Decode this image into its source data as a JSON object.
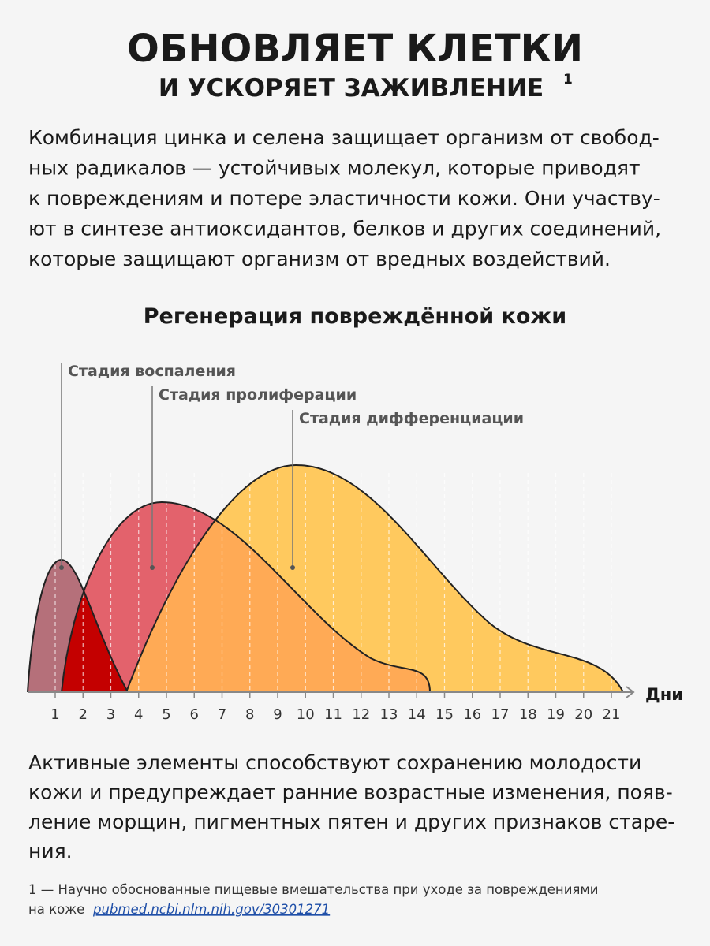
{
  "header": {
    "title": "ОБНОВЛЯЕТ КЛЕТКИ",
    "subtitle": "И УСКОРЯЕТ ЗАЖИВЛЕНИЕ",
    "footnote_mark": "1"
  },
  "intro": [
    "Комбинация цинка и селена защищает организм от свобод-",
    "ных радикалов — устойчивых молекул, которые приводят",
    "к повреждениям и потере эластичности кожи. Они участву-",
    "ют в синтезе антиоксидантов, белков и других соединений,",
    "которые защищают организм от вредных воздействий."
  ],
  "diagram": {
    "title": "Регенерация повреждённой кожи",
    "stages": [
      "Стадия воспаления",
      "Стадия пролиферации",
      "Стадия дифференциации"
    ],
    "axis_label": "Дни",
    "xticks": [
      1,
      2,
      3,
      4,
      5,
      6,
      7,
      8,
      9,
      10,
      11,
      12,
      13,
      14,
      15,
      16,
      17,
      18,
      19,
      20,
      21
    ]
  },
  "outro": [
    "Активные элементы способствуют сохранению молодости",
    "кожи и предупреждает ранние возрастные изменения, появ-",
    "ление морщин, пигментных пятен и других признаков старе-",
    "ния."
  ],
  "footnote": {
    "lines": [
      "1 — Научно обоснованные пищевые вмешательства при уходе за повреждениями",
      "на коже"
    ],
    "link": "pubmed.ncbi.nlm.nih.gov/30301271"
  }
}
